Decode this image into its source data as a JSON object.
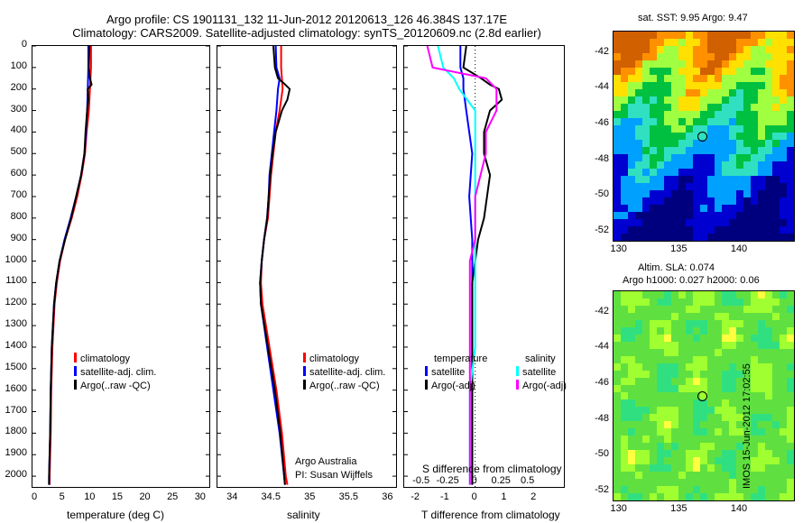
{
  "header": {
    "line1": "Argo profile: CS 1901131_132 11-Jun-2012 20120613_126 46.384S 137.17E",
    "line2": "Climatology: CARS2009. Satellite-adjusted climatology: synTS_20120609.nc (2.8d earlier)"
  },
  "colors": {
    "climatology": "#ff0000",
    "satellite": "#0000ff",
    "argo": "#000000",
    "argo_adj_sal": "#ff00ff",
    "sat_sal": "#00ffff"
  },
  "chart_data": [
    {
      "type": "line",
      "xlabel": "temperature (deg C)",
      "ylabel": "",
      "xlim": [
        -0.5,
        31.5
      ],
      "ylim": [
        2050,
        0
      ],
      "xticks": [
        "0",
        "5",
        "10",
        "15",
        "20",
        "25",
        "30"
      ],
      "yticks": [
        "0",
        "100",
        "200",
        "300",
        "400",
        "500",
        "600",
        "700",
        "800",
        "900",
        "1000",
        "1100",
        "1200",
        "1300",
        "1400",
        "1500",
        "1600",
        "1700",
        "1800",
        "1900",
        "2000"
      ],
      "legend": [
        "climatology",
        "satellite-adj. clim.",
        "Argo(..raw -QC)"
      ],
      "series": [
        {
          "name": "climatology",
          "depth": [
            0,
            100,
            200,
            300,
            400,
            500,
            600,
            700,
            800,
            900,
            1000,
            1100,
            1200,
            1400,
            1600,
            1800,
            2000,
            2040
          ],
          "values": [
            10.1,
            10.1,
            9.9,
            9.7,
            9.3,
            9.0,
            8.4,
            7.6,
            6.6,
            5.4,
            4.5,
            3.9,
            3.5,
            3.1,
            2.9,
            2.8,
            2.6,
            2.6
          ]
        },
        {
          "name": "satellite-adj. clim.",
          "depth": [
            0,
            100,
            200,
            300,
            400,
            500,
            600,
            700,
            800,
            900,
            1000,
            1100,
            1200,
            1400,
            1600,
            1800,
            2000,
            2040
          ],
          "values": [
            9.6,
            9.6,
            9.5,
            9.4,
            9.2,
            8.9,
            8.3,
            7.4,
            6.4,
            5.3,
            4.4,
            3.8,
            3.4,
            3.0,
            2.8,
            2.7,
            2.5,
            2.5
          ]
        },
        {
          "name": "Argo(..raw -QC)",
          "depth": [
            0,
            100,
            150,
            180,
            200,
            250,
            300,
            400,
            500,
            600,
            700,
            800,
            900,
            1000,
            1100,
            1200,
            1400,
            1600,
            1800,
            2000,
            2040
          ],
          "values": [
            9.8,
            9.7,
            9.9,
            10.2,
            9.5,
            9.6,
            9.4,
            9.1,
            8.9,
            8.3,
            7.4,
            6.5,
            5.4,
            4.4,
            3.8,
            3.4,
            3.0,
            2.8,
            2.7,
            2.5,
            2.5
          ]
        }
      ]
    },
    {
      "type": "line",
      "xlabel": "salinity",
      "ylabel": "",
      "xlim": [
        33.8,
        36.1
      ],
      "ylim": [
        2050,
        0
      ],
      "xticks": [
        "34",
        "34.5",
        "35",
        "35.5",
        "36"
      ],
      "legend": [
        "climatology",
        "satellite-adj. clim.",
        "Argo(..raw -QC)"
      ],
      "annotation": [
        "Argo Australia",
        "PI: Susan Wijffels"
      ],
      "series": [
        {
          "name": "climatology",
          "depth": [
            0,
            100,
            200,
            300,
            400,
            500,
            600,
            700,
            800,
            900,
            1000,
            1100,
            1200,
            1400,
            1600,
            1800,
            2000,
            2040
          ],
          "values": [
            34.62,
            34.62,
            34.64,
            34.6,
            34.55,
            34.52,
            34.49,
            34.47,
            34.45,
            34.4,
            34.37,
            34.36,
            34.38,
            34.47,
            34.56,
            34.63,
            34.68,
            34.7
          ]
        },
        {
          "name": "satellite-adj. clim.",
          "depth": [
            0,
            100,
            150,
            200,
            300,
            400,
            500,
            600,
            700,
            800,
            900,
            1000,
            1100,
            1200,
            1400,
            1600,
            1800,
            2000,
            2040
          ],
          "values": [
            34.55,
            34.56,
            34.6,
            34.58,
            34.56,
            34.53,
            34.5,
            34.47,
            34.46,
            34.44,
            34.4,
            34.37,
            34.35,
            34.36,
            34.44,
            34.52,
            34.6,
            34.66,
            34.67
          ]
        },
        {
          "name": "Argo(..raw -QC)",
          "depth": [
            0,
            100,
            150,
            175,
            200,
            250,
            300,
            400,
            500,
            600,
            700,
            800,
            900,
            1000,
            1100,
            1200,
            1400,
            1600,
            1800,
            2000,
            2040
          ],
          "values": [
            34.52,
            34.54,
            34.58,
            34.66,
            34.73,
            34.7,
            34.63,
            34.55,
            34.51,
            34.48,
            34.46,
            34.44,
            34.4,
            34.37,
            34.35,
            34.36,
            34.45,
            34.54,
            34.61,
            34.66,
            34.67
          ]
        }
      ]
    },
    {
      "type": "line",
      "xlabel": "T difference from climatology",
      "xlabel_top": "S difference from climatology",
      "xlim": [
        -2.4,
        3.0
      ],
      "ylim": [
        2050,
        0
      ],
      "xticks": [
        "-2",
        "-1",
        "0",
        "1",
        "2"
      ],
      "xticks_s": [
        "-0.5",
        "-0.25",
        "0",
        "0.25",
        "0.5"
      ],
      "legend_t": {
        "title": "temperature",
        "items": [
          "satellite",
          "Argo(-adj)"
        ]
      },
      "legend_s": {
        "title": "salinity",
        "items": [
          "satellite",
          "Argo(-adj)"
        ]
      },
      "series": [
        {
          "name": "satellite",
          "depth": [
            0,
            100,
            150,
            200,
            300,
            500,
            700,
            900,
            1000,
            1100,
            1200,
            1400,
            1600,
            1800,
            2000,
            2040
          ],
          "values": [
            -0.5,
            -0.5,
            -0.4,
            -0.4,
            -0.3,
            -0.1,
            -0.2,
            -0.1,
            -0.1,
            -0.1,
            -0.1,
            -0.1,
            -0.1,
            -0.1,
            -0.1,
            -0.1
          ]
        },
        {
          "name": "Argo(-adj)",
          "depth": [
            0,
            100,
            150,
            180,
            200,
            250,
            300,
            400,
            500,
            600,
            700,
            800,
            900,
            1000,
            1100,
            1200,
            1400,
            1600,
            1800,
            2000,
            2040
          ],
          "values": [
            -0.3,
            -0.4,
            0.2,
            0.5,
            0.8,
            0.9,
            0.5,
            0.3,
            0.3,
            0.5,
            0.4,
            0.3,
            0.1,
            0.0,
            -0.1,
            -0.1,
            -0.1,
            -0.1,
            -0.1,
            -0.1,
            -0.1
          ]
        },
        {
          "name": "satellite",
          "depth": [
            0,
            100,
            150,
            200,
            300,
            500,
            700,
            900,
            1000,
            1100,
            1200,
            1400,
            1600,
            1800,
            2000,
            2040
          ],
          "values": [
            -0.35,
            -0.3,
            -0.2,
            -0.15,
            0.0,
            0.0,
            0.0,
            0.0,
            0.0,
            0.0,
            0.0,
            0.0,
            -0.05,
            -0.05,
            -0.05,
            -0.05
          ]
        },
        {
          "name": "Argo(-adj)",
          "depth": [
            0,
            100,
            150,
            200,
            300,
            400,
            500,
            700,
            900,
            1000,
            1100,
            1200,
            1400,
            1600,
            1800,
            2000,
            2040
          ],
          "values": [
            -0.45,
            -0.4,
            0.1,
            0.2,
            0.2,
            0.1,
            0.1,
            0.0,
            0.0,
            -0.05,
            -0.05,
            -0.05,
            -0.05,
            -0.05,
            -0.05,
            -0.05,
            -0.05
          ]
        }
      ]
    },
    {
      "type": "heatmap",
      "title": "sat. SST: 9.95 Argo: 9.47",
      "xticks": [
        "130",
        "135",
        "140"
      ],
      "yticks": [
        "-42",
        "-44",
        "-46",
        "-48",
        "-50",
        "-52"
      ],
      "xlim": [
        129.5,
        144.5
      ],
      "ylim": [
        -52.5,
        -40.8
      ],
      "marker": [
        137.17,
        -46.384
      ]
    },
    {
      "type": "heatmap",
      "title": "Altim. SLA: 0.074",
      "subtitle": "Argo h1000: 0.027 h2000: 0.06",
      "xticks": [
        "130",
        "135",
        "140"
      ],
      "yticks": [
        "-42",
        "-44",
        "-46",
        "-48",
        "-50",
        "-52"
      ],
      "xlim": [
        129.5,
        144.5
      ],
      "ylim": [
        -52.5,
        -40.8
      ],
      "marker": [
        137.17,
        -46.384
      ]
    }
  ],
  "stamp": "IMOS 15-Jun-2012 17:02:55"
}
